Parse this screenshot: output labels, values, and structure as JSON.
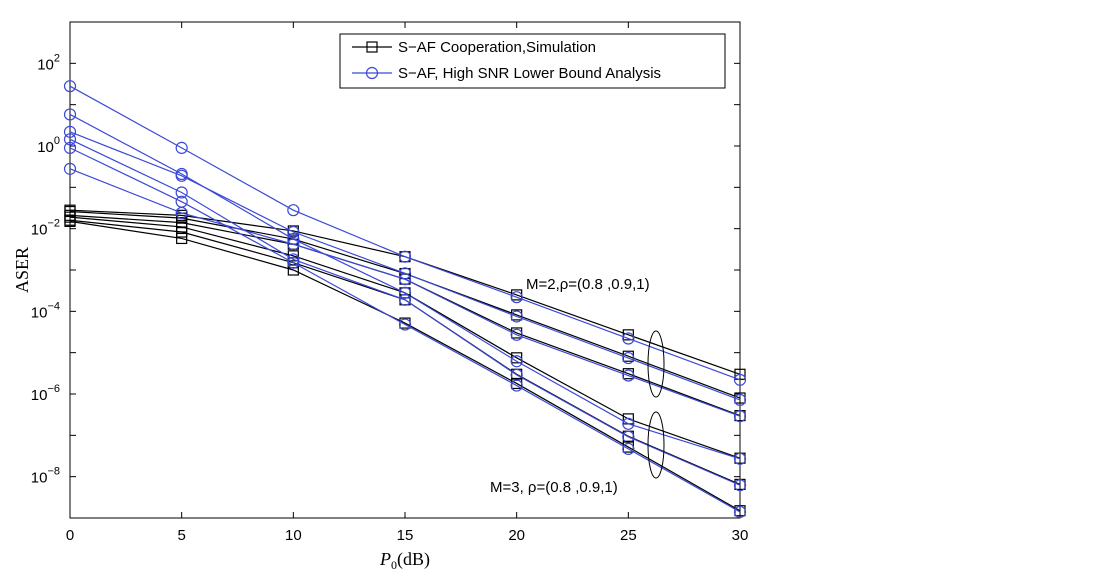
{
  "chart_data": {
    "type": "line",
    "xlabel": "P_0(dB)",
    "ylabel": "ASER",
    "xlim": [
      0,
      30
    ],
    "ylim_exponent": [
      -9,
      3
    ],
    "yscale": "log",
    "xticks": [
      0,
      5,
      10,
      15,
      20,
      25,
      30
    ],
    "xtick_labels": [
      "0",
      "5",
      "10",
      "15",
      "20",
      "25",
      "30"
    ],
    "yticks_exponent": [
      -8,
      -6,
      -4,
      -2,
      0,
      2
    ],
    "ytick_labels": [
      "10",
      "10",
      "10",
      "10",
      "10",
      "10"
    ],
    "ytick_superscripts": [
      "−8",
      "−6",
      "−4",
      "−2",
      "0",
      "2"
    ],
    "grid": false,
    "legend_position": "top-right",
    "colors": {
      "simulation": "#000000",
      "analysis": "#3b49d8"
    },
    "legend": [
      {
        "label": "S−AF Cooperation,Simulation",
        "marker": "square",
        "color": "#000000"
      },
      {
        "label": "S−AF, High SNR Lower Bound Analysis",
        "marker": "circle",
        "color": "#3b49d8"
      }
    ],
    "annotations": [
      {
        "text": "M=2,ρ=(0.8 ,0.9,1)"
      },
      {
        "text": "M=3, ρ=(0.8 ,0.9,1)"
      }
    ],
    "x": [
      0,
      5,
      10,
      15,
      20,
      25,
      30
    ],
    "series": [
      {
        "kind": "simulation",
        "values": [
          0.028,
          0.021,
          0.0088,
          0.0021,
          0.00025,
          2.7e-05,
          3e-06
        ]
      },
      {
        "kind": "analysis",
        "values": [
          28,
          0.9,
          0.028,
          0.0021,
          0.00022,
          2.2e-05,
          2.2e-06
        ]
      },
      {
        "kind": "simulation",
        "values": [
          0.026,
          0.018,
          0.0056,
          0.00082,
          8.2e-05,
          8.2e-06,
          8e-07
        ]
      },
      {
        "kind": "analysis",
        "values": [
          2.2,
          0.19,
          0.0083,
          0.00083,
          7.5e-05,
          7.4e-06,
          7.2e-07
        ]
      },
      {
        "kind": "simulation",
        "values": [
          0.021,
          0.014,
          0.0042,
          0.0006,
          3e-05,
          3.1e-06,
          3e-07
        ]
      },
      {
        "kind": "analysis",
        "values": [
          0.28,
          0.024,
          0.0042,
          0.0006,
          2.7e-05,
          2.8e-06,
          2.9e-07
        ]
      },
      {
        "kind": "simulation",
        "values": [
          0.019,
          0.011,
          0.0022,
          0.00028,
          7.5e-06,
          2.5e-07,
          2.8e-08
        ]
      },
      {
        "kind": "analysis",
        "values": [
          5.8,
          0.21,
          0.0056,
          0.00028,
          6.2e-06,
          1.9e-07,
          2.7e-08
        ]
      },
      {
        "kind": "simulation",
        "values": [
          0.016,
          0.0083,
          0.0015,
          0.00019,
          3e-06,
          9.5e-08,
          6.5e-09
        ]
      },
      {
        "kind": "analysis",
        "values": [
          1.45,
          0.075,
          0.0018,
          0.00019,
          2.9e-06,
          9.2e-08,
          6.2e-09
        ]
      },
      {
        "kind": "simulation",
        "values": [
          0.015,
          0.0058,
          0.001,
          5.2e-05,
          1.8e-06,
          5.2e-08,
          1.5e-09
        ]
      },
      {
        "kind": "analysis",
        "values": [
          0.9,
          0.045,
          0.0015,
          4.8e-05,
          1.6e-06,
          4.7e-08,
          1.4e-09
        ]
      }
    ]
  }
}
